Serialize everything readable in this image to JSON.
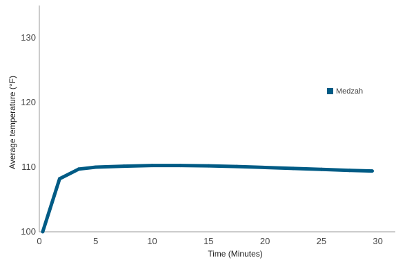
{
  "chart_data": {
    "type": "line",
    "xlabel": "Time (Minutes)",
    "ylabel": "Average temperature (°F)",
    "xlim": [
      0,
      31
    ],
    "ylim": [
      100,
      135
    ],
    "x_ticks": [
      0,
      5,
      10,
      15,
      20,
      25,
      30
    ],
    "y_ticks": [
      100,
      110,
      120,
      130
    ],
    "grid": false,
    "legend_position": "right",
    "series": [
      {
        "name": "Medzah",
        "color": "#005b85",
        "x": [
          0.3,
          1.8,
          3.5,
          5,
          7.5,
          10,
          12.5,
          15,
          17.5,
          20,
          22.5,
          25,
          27.5,
          29.5
        ],
        "y": [
          100.0,
          108.2,
          109.7,
          110.0,
          110.15,
          110.25,
          110.25,
          110.2,
          110.1,
          109.95,
          109.8,
          109.65,
          109.5,
          109.4
        ]
      }
    ]
  }
}
